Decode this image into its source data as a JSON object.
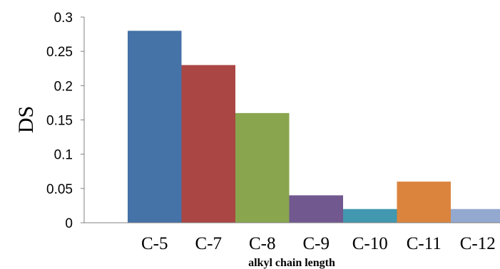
{
  "chart_data": {
    "type": "bar",
    "categories": [
      "C-5",
      "C-7",
      "C-8",
      "C-9",
      "C-10",
      "C-11",
      "C-12"
    ],
    "values": [
      0.28,
      0.23,
      0.16,
      0.04,
      0.02,
      0.06,
      0.02
    ],
    "colors": [
      "#4572A7",
      "#AA4643",
      "#89A54E",
      "#71588F",
      "#4198AF",
      "#DB843D",
      "#93A9CF"
    ],
    "xlabel": "alkyl chain length",
    "ylabel": "DS",
    "ylim": [
      0,
      0.3
    ],
    "yticks": [
      "0",
      "0.05",
      "0.1",
      "0.15",
      "0.2",
      "0.25",
      "0.3"
    ],
    "grid": false,
    "legend": "none"
  }
}
